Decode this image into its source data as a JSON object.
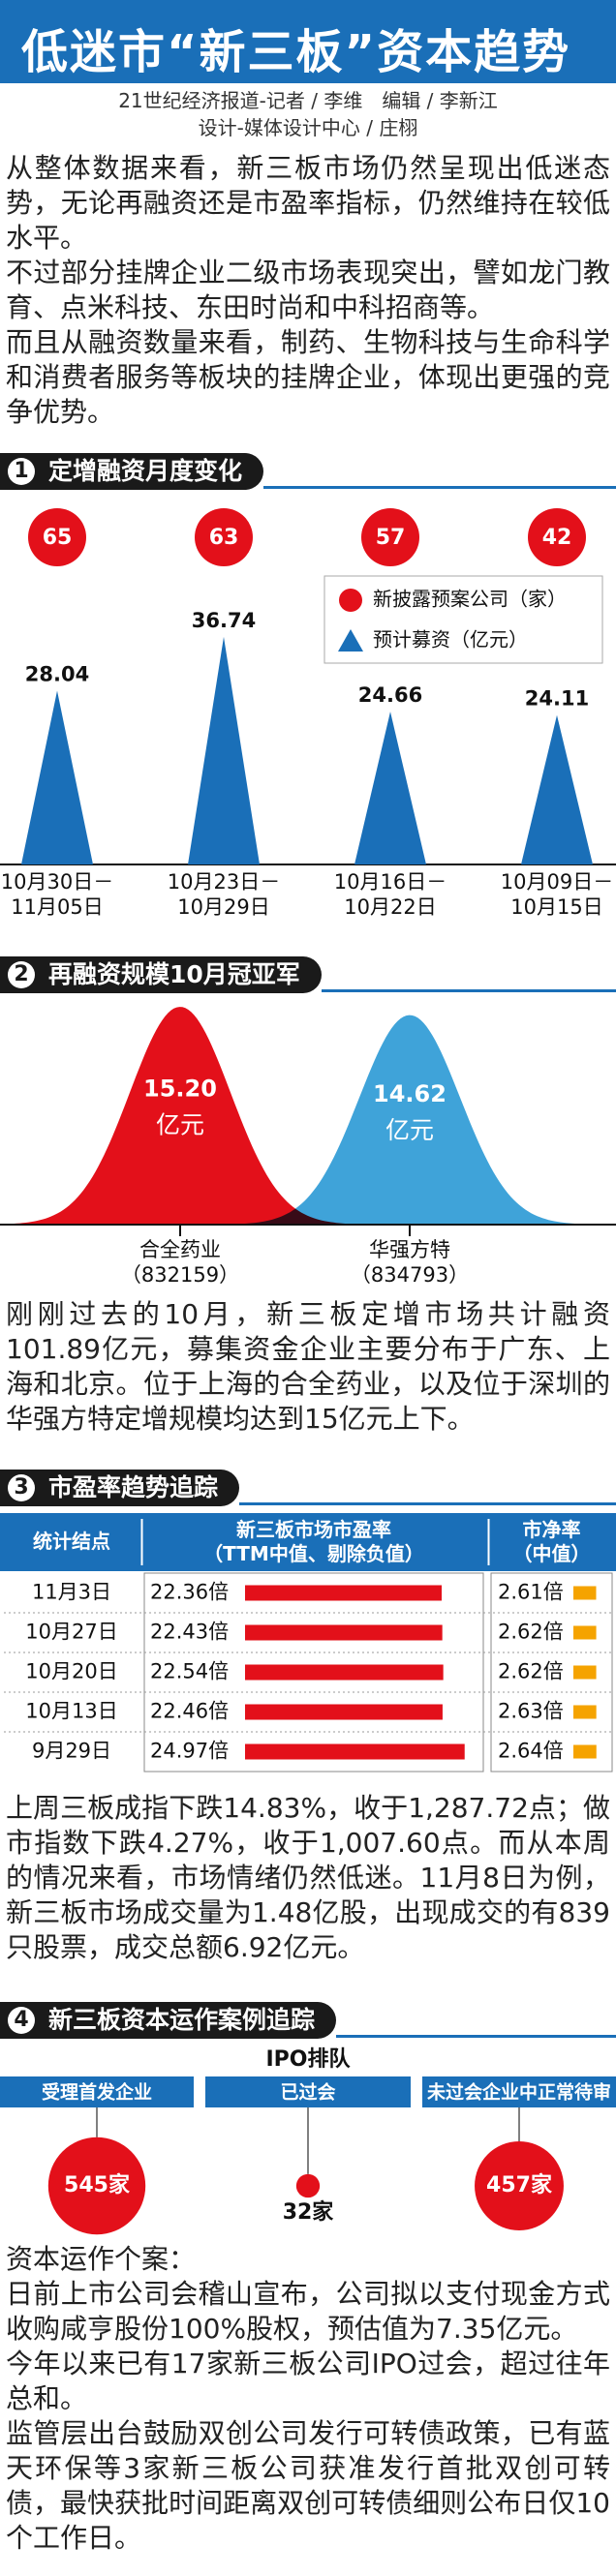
{
  "header": {
    "title": "低迷市“新三板”资本趋势",
    "credits": [
      "21世纪经济报道-记者 / 李维　编辑 / 李新江",
      "设计-媒体设计中心 / 庄栩"
    ]
  },
  "intro": [
    "从整体数据来看，新三板市场仍然呈现出低迷态势，无论再融资还是市盈率指标，仍然维持在较低水平。",
    "不过部分挂牌企业二级市场表现突出，譬如龙门教育、点米科技、东田时尚和中科招商等。",
    "而且从融资数量来看，制药、生物科技与生命科学和消费者服务等板块的挂牌企业，体现出更强的竞争优势。"
  ],
  "sections": [
    {
      "number": 1,
      "title": "定增融资月度变化"
    },
    {
      "number": 2,
      "title": "再融资规模10月冠亚军"
    },
    {
      "number": 3,
      "title": "市盈率趋势追踪"
    },
    {
      "number": 4,
      "title": "新三板资本运作案例追踪"
    }
  ],
  "chart_data": [
    {
      "type": "bar",
      "categories": [
        "10月30日－\n11月05日",
        "10月23日－\n10月29日",
        "10月16日－\n10月22日",
        "10月09日－\n10月15日"
      ],
      "series": [
        {
          "name": "新披露预案公司（家）",
          "color": "#e3101a",
          "marker": "circle",
          "values": [
            65,
            63,
            57,
            42
          ]
        },
        {
          "name": "预计募资（亿元）",
          "color": "#1a6fb8",
          "marker": "triangle",
          "values": [
            28.04,
            36.74,
            24.66,
            24.11
          ]
        }
      ],
      "legend": "upper right"
    },
    {
      "type": "area",
      "categories": [
        "合全药业\n（832159）",
        "华强方特\n（834793）"
      ],
      "values": [
        15.2,
        14.62
      ],
      "value_labels": [
        "15.20",
        "14.62"
      ],
      "unit": "亿元",
      "colors": [
        "#e3101a",
        "#3fa3d9"
      ]
    }
  ],
  "section2_text": [
    "刚刚过去的10月，新三板定增市场共计融资101.89亿元，募集资金企业主要分布于广东、上海和北京。位于上海的合全药业，以及位于深圳的华强方特定增规模均达到15亿元上下。"
  ],
  "table": {
    "columns": [
      "统计结点",
      "新三板市场市盈率\n（TTM中值、剔除负值）",
      "市净率\n（中值）"
    ],
    "pe_color": "#e3101a",
    "pb_color": "#f5a300",
    "rows": [
      {
        "date": "11月3日",
        "pe": 22.36,
        "pe_label": "22.36倍",
        "pb": 2.61,
        "pb_label": "2.61倍"
      },
      {
        "date": "10月27日",
        "pe": 22.43,
        "pe_label": "22.43倍",
        "pb": 2.62,
        "pb_label": "2.62倍"
      },
      {
        "date": "10月20日",
        "pe": 22.54,
        "pe_label": "22.54倍",
        "pb": 2.62,
        "pb_label": "2.62倍"
      },
      {
        "date": "10月13日",
        "pe": 22.46,
        "pe_label": "22.46倍",
        "pb": 2.63,
        "pb_label": "2.63倍"
      },
      {
        "date": "9月29日",
        "pe": 24.97,
        "pe_label": "24.97倍",
        "pb": 2.64,
        "pb_label": "2.64倍"
      }
    ]
  },
  "section3_text": [
    "上周三板成指下跌14.83%，收于1,287.72点；做市指数下跌4.27%，收于1,007.60点。而从本周的情况来看，市场情绪仍然低迷。11月8日为例，新三板市场成交量为1.48亿股，出现成交的有839只股票，成交总额6.92亿元。"
  ],
  "ipo": {
    "title": "IPO排队",
    "color": "#e3101a",
    "items": [
      {
        "label": "受理首发企业",
        "value": 545,
        "value_label": "545家"
      },
      {
        "label": "已过会",
        "value": 32,
        "value_label": "32家"
      },
      {
        "label": "未过会企业中正常待审",
        "value": 457,
        "value_label": "457家"
      }
    ]
  },
  "section4_text": {
    "heading": "资本运作个案：",
    "paragraphs": [
      "日前上市公司会稽山宣布，公司拟以支付现金方式收购咸亨股份100%股权，预估值为7.35亿元。",
      "今年以来已有17家新三板公司IPO过会，超过往年总和。",
      "监管层出台鼓励双创公司发行可转债政策，已有蓝天环保等3家新三板公司获准发行首批双创可转债，最快获批时间距离双创可转债细则公布日仅10个工作日。"
    ]
  }
}
